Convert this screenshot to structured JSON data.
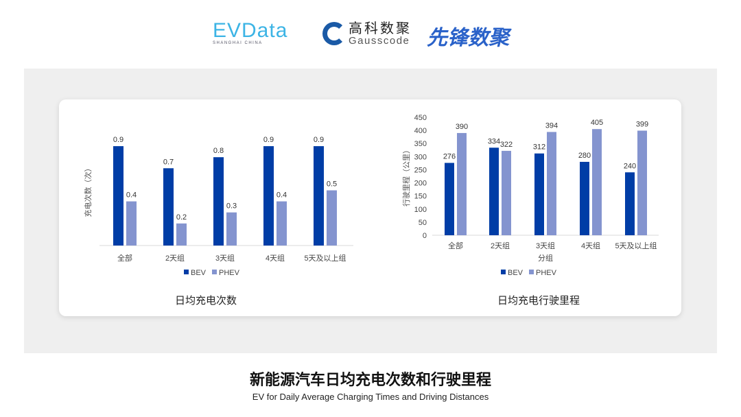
{
  "logos": {
    "evdata": {
      "text": "EVData",
      "sub": "SHANGHAI CHINA",
      "color": "#3cb4e5"
    },
    "gauss": {
      "text": "高科数聚",
      "sub": "Gausscode",
      "color": "#1a5aa6"
    },
    "xianfeng": {
      "text": "先锋数聚",
      "color": "#2a62c9"
    }
  },
  "footer": {
    "title": "新能源汽车日均充电次数和行驶里程",
    "subtitle": "EV for Daily Average Charging Times and Driving Distances"
  },
  "colors": {
    "BEV": "#003da6",
    "PHEV": "#8494cf"
  },
  "chart_data": [
    {
      "type": "bar",
      "title": "日均充电次数",
      "ylabel": "充电次数（次）",
      "xlabel": "",
      "categories": [
        "全部",
        "2天组",
        "3天组",
        "4天组",
        "5天及以上组"
      ],
      "series": [
        {
          "name": "BEV",
          "values": [
            0.9,
            0.7,
            0.8,
            0.9,
            0.9
          ]
        },
        {
          "name": "PHEV",
          "values": [
            0.4,
            0.2,
            0.3,
            0.4,
            0.5
          ]
        }
      ],
      "ylim": [
        0,
        1
      ],
      "y_axis_visible": false,
      "grid": false,
      "legend": "bottom"
    },
    {
      "type": "bar",
      "title": "日均充电行驶里程",
      "ylabel": "行驶里程（公里）",
      "xlabel": "分组",
      "categories": [
        "全部",
        "2天组",
        "3天组",
        "4天组",
        "5天及以上组"
      ],
      "series": [
        {
          "name": "BEV",
          "values": [
            276,
            334,
            312,
            280,
            240
          ]
        },
        {
          "name": "PHEV",
          "values": [
            390,
            322,
            394,
            405,
            399
          ]
        }
      ],
      "ylim": [
        0,
        450
      ],
      "yticks": [
        0,
        50,
        100,
        150,
        200,
        250,
        300,
        350,
        400,
        450
      ],
      "grid": false,
      "legend": "bottom"
    }
  ]
}
